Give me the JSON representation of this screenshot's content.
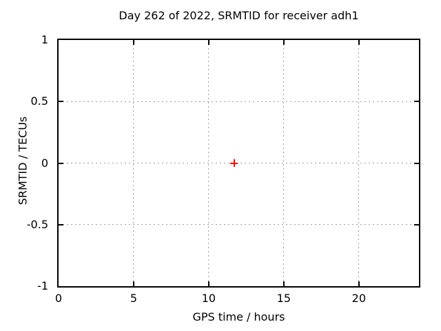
{
  "colors": {
    "background": "#ffffff",
    "border": "#000000",
    "grid": "#9b9b9b",
    "text": "#000000",
    "marker": "#ff0000"
  },
  "chart_data": {
    "type": "scatter",
    "title": "Day 262 of 2022, SRMTID for receiver adh1",
    "xlabel": "GPS time / hours",
    "ylabel": "SRMTID / TECUs",
    "xlim": [
      0,
      24
    ],
    "ylim": [
      -1,
      1
    ],
    "xticks": [
      0,
      5,
      10,
      15,
      20
    ],
    "yticks": [
      1,
      0.5,
      0,
      -0.5,
      -1
    ],
    "grid": true,
    "legend": false,
    "series": [
      {
        "name": "SRMTID",
        "marker": "plus",
        "color": "#ff0000",
        "points": [
          {
            "x": 11.7,
            "y": 0.0
          }
        ]
      }
    ]
  }
}
